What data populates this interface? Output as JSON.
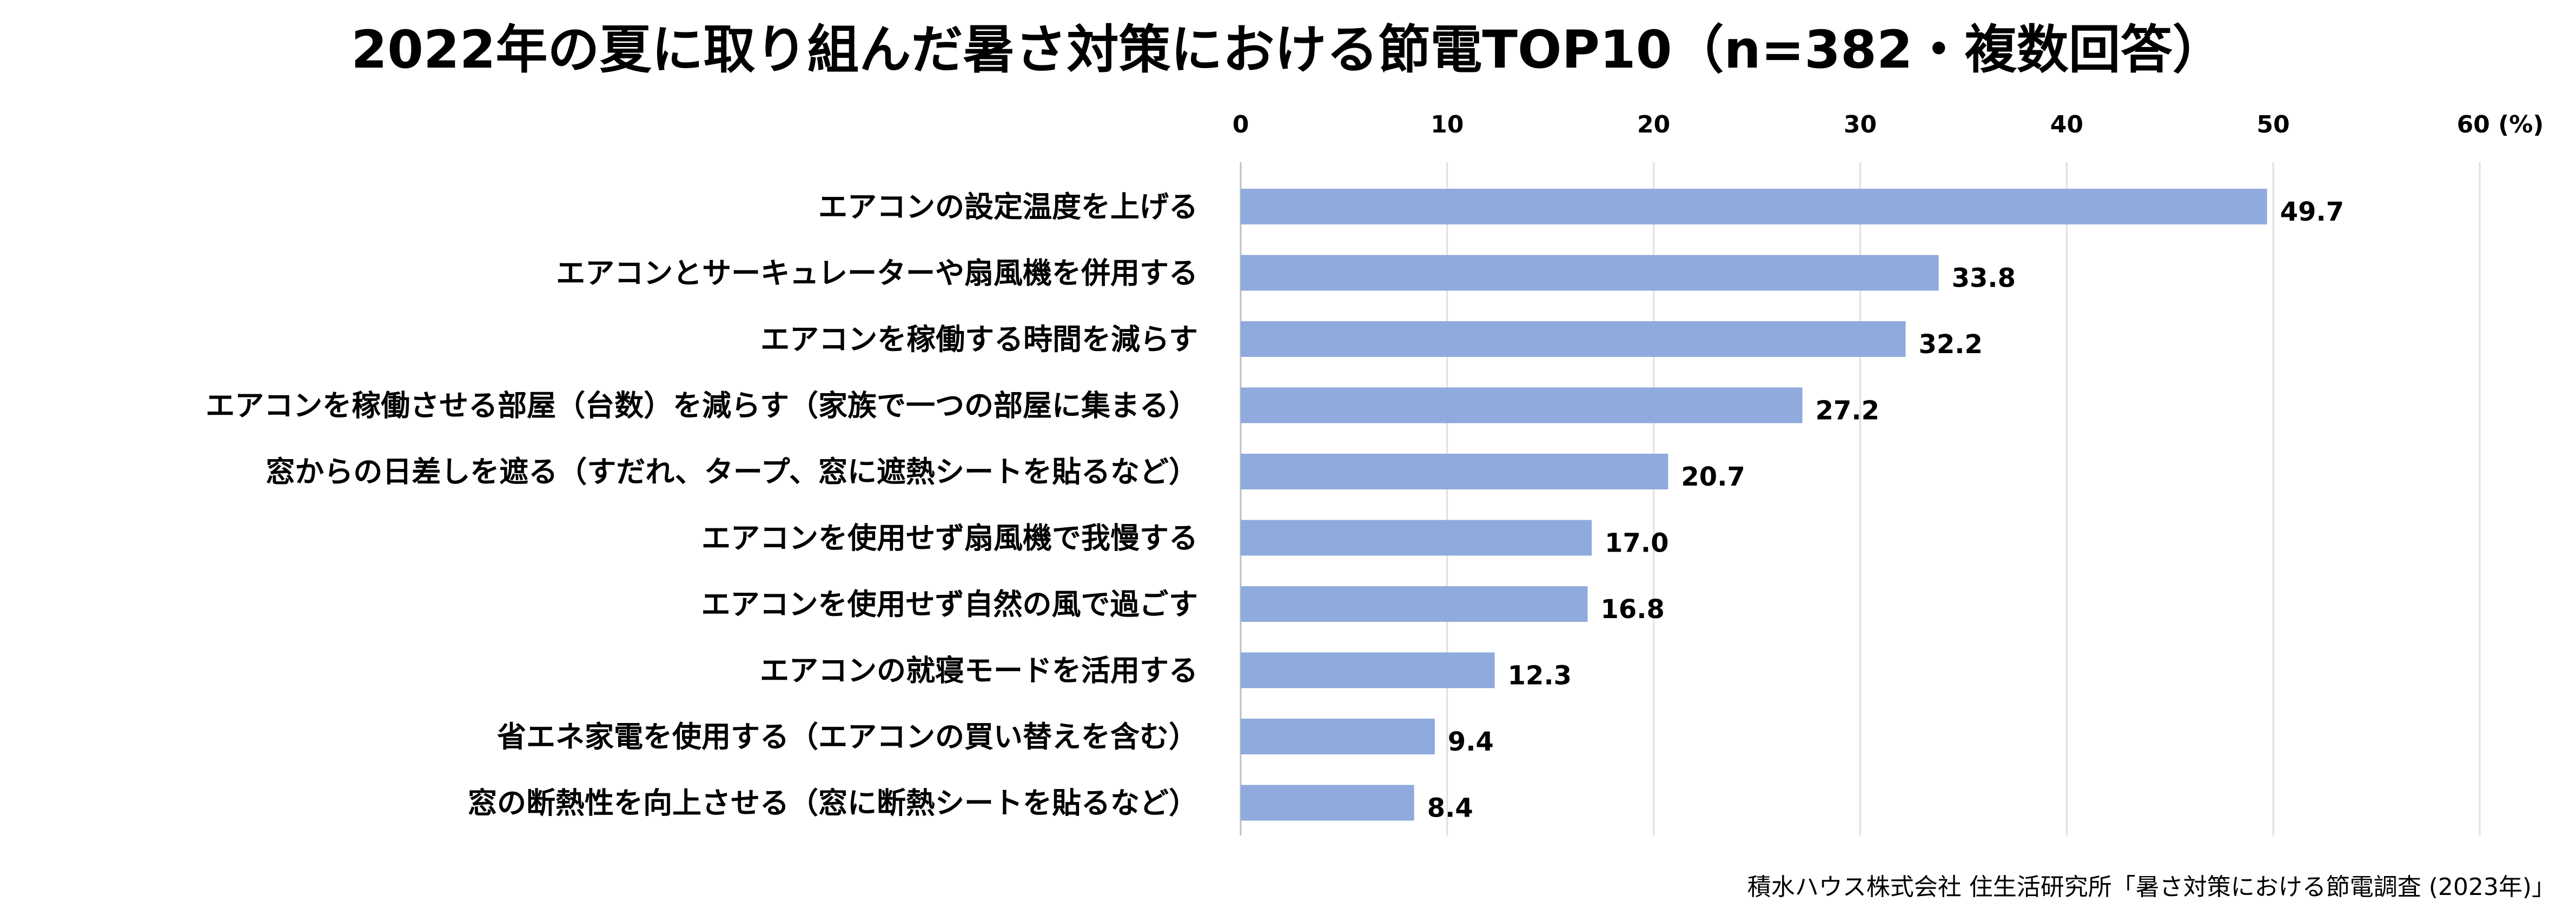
{
  "chart_data": {
    "type": "bar",
    "orientation": "horizontal",
    "title": "2022年の夏に取り組んだ暑さ対策における節電TOP10（n=382・複数回答）",
    "xlabel": "(%)",
    "ylabel": "",
    "xlim": [
      0,
      60
    ],
    "xticks": [
      "0",
      "10",
      "20",
      "30",
      "40",
      "50",
      "60"
    ],
    "grid": true,
    "bar_color": "#8faadc",
    "categories": [
      "エアコンの設定温度を上げる",
      "エアコンとサーキュレーターや扇風機を併用する",
      "エアコンを稼働する時間を減らす",
      "エアコンを稼働させる部屋（台数）を減らす（家族で一つの部屋に集まる）",
      "窓からの日差しを遮る（すだれ、タープ、窓に遮熱シートを貼るなど）",
      "エアコンを使用せず扇風機で我慢する",
      "エアコンを使用せず自然の風で過ごす",
      "エアコンの就寝モードを活用する",
      "省エネ家電を使用する（エアコンの買い替えを含む）",
      "窓の断熱性を向上させる（窓に断熱シートを貼るなど）"
    ],
    "values": [
      49.7,
      33.8,
      32.2,
      27.2,
      20.7,
      17.0,
      16.8,
      12.3,
      9.4,
      8.4
    ],
    "value_labels": [
      "49.7",
      "33.8",
      "32.2",
      "27.2",
      "20.7",
      "17.0",
      "16.8",
      "12.3",
      "9.4",
      "8.4"
    ],
    "source": "積水ハウス株式会社 住生活研究所「暑さ対策における節電調査 (2023年)」"
  }
}
